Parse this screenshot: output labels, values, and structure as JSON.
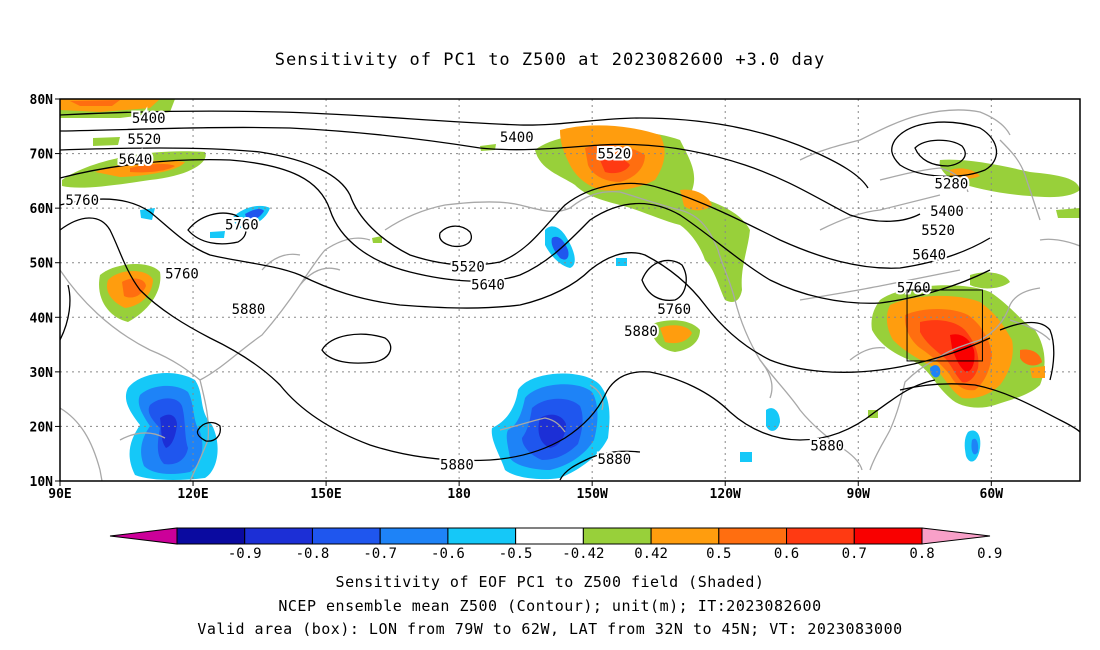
{
  "title": "Sensitivity of PC1 to Z500 at 2023082600 +3.0 day",
  "map": {
    "lat_labels": [
      "80N",
      "70N",
      "60N",
      "50N",
      "40N",
      "30N",
      "20N",
      "10N"
    ],
    "lon_labels": [
      "90E",
      "120E",
      "150E",
      "180",
      "150W",
      "120W",
      "90W",
      "60W"
    ],
    "contour_labels": [
      {
        "text": "5400",
        "lat": 76.5,
        "lon": 110
      },
      {
        "text": "5520",
        "lat": 72.7,
        "lon": 109
      },
      {
        "text": "5640",
        "lat": 69,
        "lon": 107
      },
      {
        "text": "5760",
        "lat": 61.5,
        "lon": 95
      },
      {
        "text": "5760",
        "lat": 57,
        "lon": 131
      },
      {
        "text": "5760",
        "lat": 48,
        "lon": 117.5
      },
      {
        "text": "5880",
        "lat": 41.5,
        "lon": 132.5
      },
      {
        "text": "5400",
        "lat": 73,
        "lon": -167
      },
      {
        "text": "5520",
        "lat": 70,
        "lon": -145
      },
      {
        "text": "5520",
        "lat": 49.3,
        "lon": -178
      },
      {
        "text": "5640",
        "lat": 46,
        "lon": -173.5
      },
      {
        "text": "5760",
        "lat": 41.5,
        "lon": -131.5
      },
      {
        "text": "5880",
        "lat": 37.5,
        "lon": -139
      },
      {
        "text": "5280",
        "lat": 64.5,
        "lon": -69
      },
      {
        "text": "5400",
        "lat": 59.5,
        "lon": -70
      },
      {
        "text": "5520",
        "lat": 56,
        "lon": -72
      },
      {
        "text": "5640",
        "lat": 51.5,
        "lon": -74
      },
      {
        "text": "5760",
        "lat": 45.5,
        "lon": -77.5
      },
      {
        "text": "5880",
        "lat": 13,
        "lon": 179.5
      },
      {
        "text": "5880",
        "lat": 14,
        "lon": -145
      },
      {
        "text": "5880",
        "lat": 16.5,
        "lon": -97
      }
    ],
    "valid_box": {
      "lon_w": -79,
      "lon_e": -62,
      "lat_s": 32,
      "lat_n": 45
    }
  },
  "colorbar": {
    "levels": [
      "-0.9",
      "-0.8",
      "-0.7",
      "-0.6",
      "-0.5",
      "-0.42",
      "0.42",
      "0.5",
      "0.6",
      "0.7",
      "0.8",
      "0.9"
    ],
    "colors": [
      "#cc0099",
      "#0a0aa0",
      "#1c2fd6",
      "#1f56ee",
      "#1e83f7",
      "#15c8f8",
      "#ffffff",
      "#98d03a",
      "#ff9d0e",
      "#ff6e10",
      "#ff3a12",
      "#f90000",
      "#f8a0c8"
    ]
  },
  "captions": [
    "Sensitivity of EOF PC1 to Z500 field (Shaded)",
    "NCEP ensemble mean Z500 (Contour); unit(m); IT:2023082600",
    "Valid area (box): LON from 79W to 62W, LAT from 32N to 45N; VT: 2023083000"
  ]
}
